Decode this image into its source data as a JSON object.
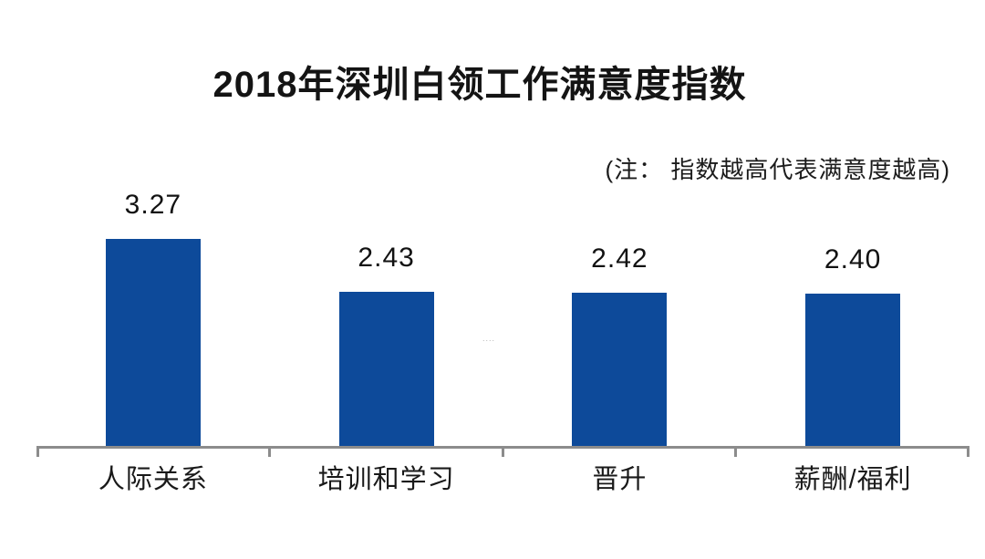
{
  "colors": {
    "bar": "#0D4A9A",
    "axis": "#8C8C8C",
    "text": "#141414"
  },
  "faint_mark": "....",
  "chart_data": {
    "type": "bar",
    "title": "2018年深圳白领工作满意度指数",
    "annotation": "(注： 指数越高代表满意度越高)",
    "categories": [
      "人际关系",
      "培训和学习",
      "晋升",
      "薪酬/福利"
    ],
    "values": [
      3.27,
      2.43,
      2.42,
      2.4
    ],
    "value_labels": [
      "3.27",
      "2.43",
      "2.42",
      "2.40"
    ],
    "xlabel": "",
    "ylabel": "",
    "ylim": [
      0,
      3.5
    ],
    "grid": false,
    "legend": false,
    "y_axis_visible": false,
    "bar_color": "#0D4A9A"
  }
}
